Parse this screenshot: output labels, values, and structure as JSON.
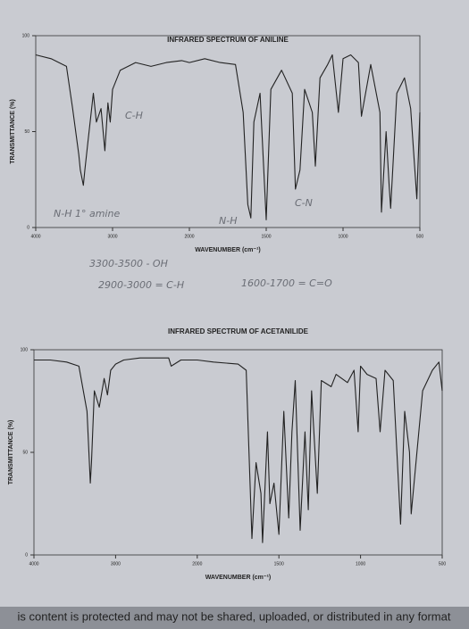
{
  "chart_data": [
    {
      "type": "line",
      "title": "INFRARED SPECTRUM OF ANILINE",
      "xlabel": "WAVENUMBER (cm⁻¹)",
      "ylabel": "TRANSMITTANCE (%)",
      "xlim": [
        4000,
        500
      ],
      "xticks": [
        4000,
        3000,
        2000,
        1500,
        1000,
        500
      ],
      "ylim": [
        0,
        100
      ],
      "yticks": [
        0,
        50,
        100
      ],
      "color": "#222222",
      "x": [
        4000,
        3800,
        3600,
        3520,
        3440,
        3420,
        3380,
        3360,
        3320,
        3250,
        3210,
        3150,
        3100,
        3060,
        3030,
        3000,
        2900,
        2700,
        2500,
        2300,
        2100,
        2000,
        1900,
        1800,
        1700,
        1650,
        1620,
        1600,
        1580,
        1540,
        1500,
        1470,
        1400,
        1330,
        1310,
        1280,
        1250,
        1200,
        1180,
        1150,
        1100,
        1070,
        1030,
        1000,
        950,
        900,
        880,
        820,
        760,
        750,
        720,
        700,
        690,
        650,
        600,
        560,
        520,
        500
      ],
      "values": [
        90,
        88,
        84,
        62,
        38,
        30,
        22,
        30,
        45,
        70,
        55,
        62,
        40,
        65,
        55,
        72,
        82,
        86,
        84,
        86,
        87,
        86,
        88,
        86,
        85,
        60,
        12,
        5,
        55,
        70,
        4,
        72,
        82,
        70,
        20,
        30,
        72,
        60,
        32,
        78,
        85,
        90,
        60,
        88,
        90,
        86,
        58,
        85,
        60,
        8,
        50,
        22,
        10,
        70,
        78,
        62,
        15,
        60
      ]
    },
    {
      "type": "line",
      "title": "INFRARED SPECTRUM OF ACETANILIDE",
      "xlabel": "WAVENUMBER (cm⁻¹)",
      "ylabel": "TRANSMITTANCE (%)",
      "xlim": [
        4000,
        500
      ],
      "xticks": [
        4000,
        3000,
        2000,
        1500,
        1000,
        500
      ],
      "ylim": [
        0,
        100
      ],
      "yticks": [
        0,
        50,
        100
      ],
      "color": "#222222",
      "x": [
        4000,
        3800,
        3600,
        3450,
        3350,
        3310,
        3295,
        3260,
        3200,
        3140,
        3100,
        3060,
        3000,
        2900,
        2700,
        2500,
        2350,
        2320,
        2200,
        2000,
        1900,
        1750,
        1700,
        1665,
        1640,
        1610,
        1600,
        1570,
        1555,
        1530,
        1500,
        1470,
        1440,
        1420,
        1400,
        1370,
        1340,
        1320,
        1300,
        1265,
        1240,
        1180,
        1150,
        1080,
        1040,
        1015,
        1000,
        960,
        905,
        880,
        850,
        800,
        755,
        730,
        700,
        690,
        620,
        560,
        520,
        500
      ],
      "values": [
        95,
        95,
        94,
        92,
        70,
        35,
        45,
        80,
        72,
        86,
        78,
        90,
        93,
        95,
        96,
        96,
        96,
        92,
        95,
        95,
        94,
        93,
        90,
        8,
        45,
        30,
        6,
        60,
        25,
        35,
        10,
        70,
        18,
        60,
        85,
        12,
        60,
        22,
        80,
        30,
        85,
        82,
        88,
        84,
        90,
        60,
        92,
        88,
        86,
        60,
        90,
        85,
        15,
        70,
        50,
        20,
        80,
        90,
        94,
        80
      ]
    }
  ],
  "annotations": [
    "N-H  1° amine",
    "C-H",
    "N-H",
    "C-N",
    "3300-3500 - OH",
    "2900-3000 = C-H",
    "1600-1700 = C=O"
  ],
  "footer": "is content is protected and may not be shared, uploaded, or distributed in any format"
}
